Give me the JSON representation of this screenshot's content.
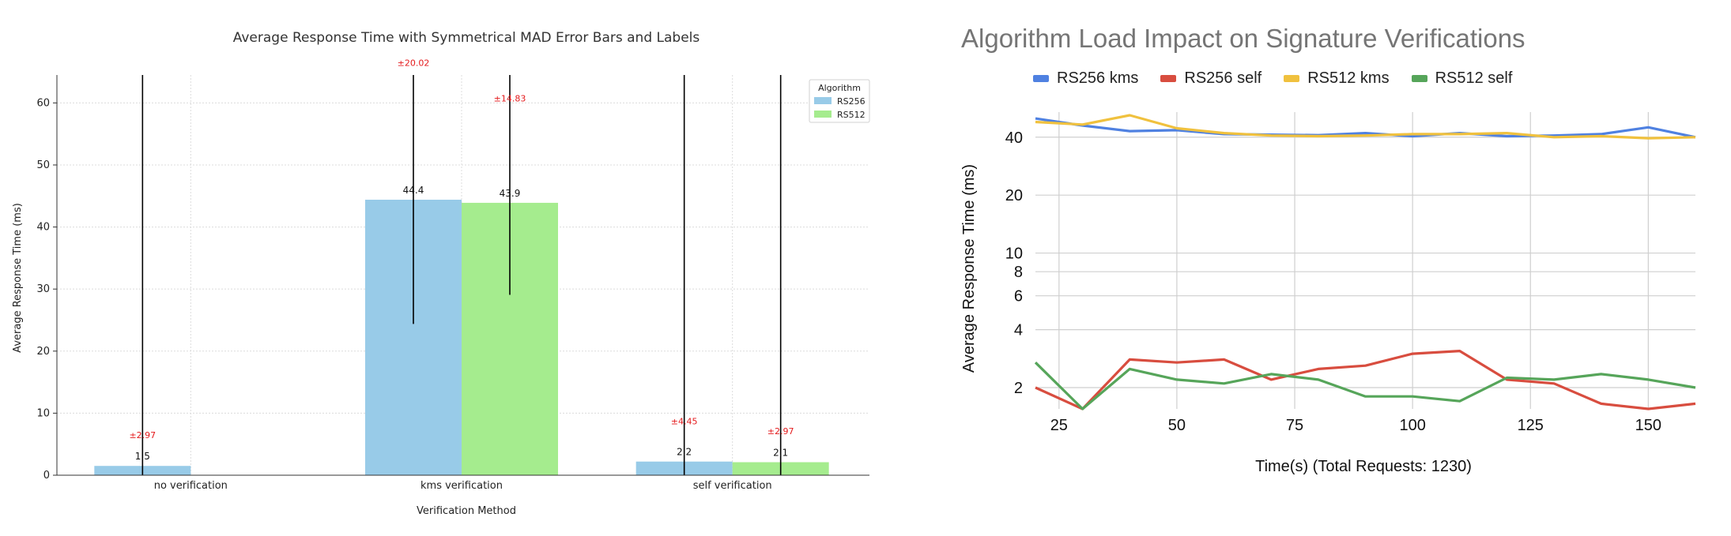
{
  "chart_data": [
    {
      "type": "bar",
      "title": "Average Response Time with Symmetrical MAD Error Bars and Labels",
      "xlabel": "Verification Method",
      "ylabel": "Average Response Time (ms)",
      "categories": [
        "no verification",
        "kms verification",
        "self verification"
      ],
      "series": [
        {
          "name": "RS256",
          "color": "#98cbe8",
          "values": [
            1.5,
            44.4,
            2.2
          ],
          "errors": [
            2.97,
            20.02,
            4.45
          ],
          "value_labels": [
            "1.5",
            "44.4",
            "2.2"
          ],
          "error_labels": [
            "±2.97",
            "±20.02",
            "±4.45"
          ]
        },
        {
          "name": "RS512",
          "color": "#a5ec8e",
          "values": [
            null,
            43.9,
            2.1
          ],
          "errors": [
            null,
            14.83,
            2.97
          ],
          "value_labels": [
            "",
            "43.9",
            "2.1"
          ],
          "error_labels": [
            "",
            "±14.83",
            "±2.97"
          ]
        }
      ],
      "ylim": [
        0,
        64.5
      ],
      "yticks": [
        0,
        10,
        20,
        30,
        40,
        50,
        60
      ],
      "ytick_labels": [
        "0",
        "10",
        "20",
        "30",
        "40",
        "50",
        "60"
      ],
      "grid": true,
      "legend": {
        "title": "Algorithm",
        "position": "top-right"
      },
      "label_color": "#e41a1c"
    },
    {
      "type": "line",
      "title": "Algorithm Load Impact on Signature Verifications",
      "xlabel": "Time(s) (Total Requests: 1230)",
      "ylabel": "Average Response Time (ms)",
      "y_scale": "log",
      "xlim": [
        20,
        160
      ],
      "ylim": [
        1.55,
        54
      ],
      "xticks": [
        25,
        50,
        75,
        100,
        125,
        150
      ],
      "xtick_labels": [
        "25",
        "50",
        "75",
        "100",
        "125",
        "150"
      ],
      "yticks": [
        2,
        4,
        6,
        8,
        10,
        20,
        40
      ],
      "ytick_labels": [
        "2",
        "4",
        "6",
        "8",
        "10",
        "20",
        "40"
      ],
      "grid": true,
      "legend": {
        "position": "top"
      },
      "x": [
        20,
        30,
        40,
        50,
        60,
        70,
        80,
        90,
        100,
        110,
        120,
        130,
        140,
        150,
        160
      ],
      "series": [
        {
          "name": "RS256 kms",
          "color": "#4f81e1",
          "values": [
            50,
            46,
            43,
            43.5,
            41.5,
            41.2,
            41,
            42,
            40.5,
            42,
            40.5,
            40.8,
            41.5,
            45,
            40
          ]
        },
        {
          "name": "RS256 self",
          "color": "#d84d3f",
          "values": [
            2.0,
            1.55,
            2.8,
            2.7,
            2.8,
            2.2,
            2.5,
            2.6,
            3.0,
            3.1,
            2.2,
            2.1,
            1.65,
            1.55,
            1.65
          ]
        },
        {
          "name": "RS512 kms",
          "color": "#f0c13e",
          "values": [
            48,
            46.5,
            52,
            44.5,
            42,
            40.8,
            40.5,
            40.8,
            41.5,
            41.5,
            42,
            40,
            40.5,
            39.5,
            40
          ]
        },
        {
          "name": "RS512 self",
          "color": "#56a55a",
          "values": [
            2.7,
            1.55,
            2.5,
            2.2,
            2.1,
            2.35,
            2.2,
            1.8,
            1.8,
            1.7,
            2.25,
            2.2,
            2.35,
            2.2,
            2.0
          ]
        }
      ]
    }
  ]
}
